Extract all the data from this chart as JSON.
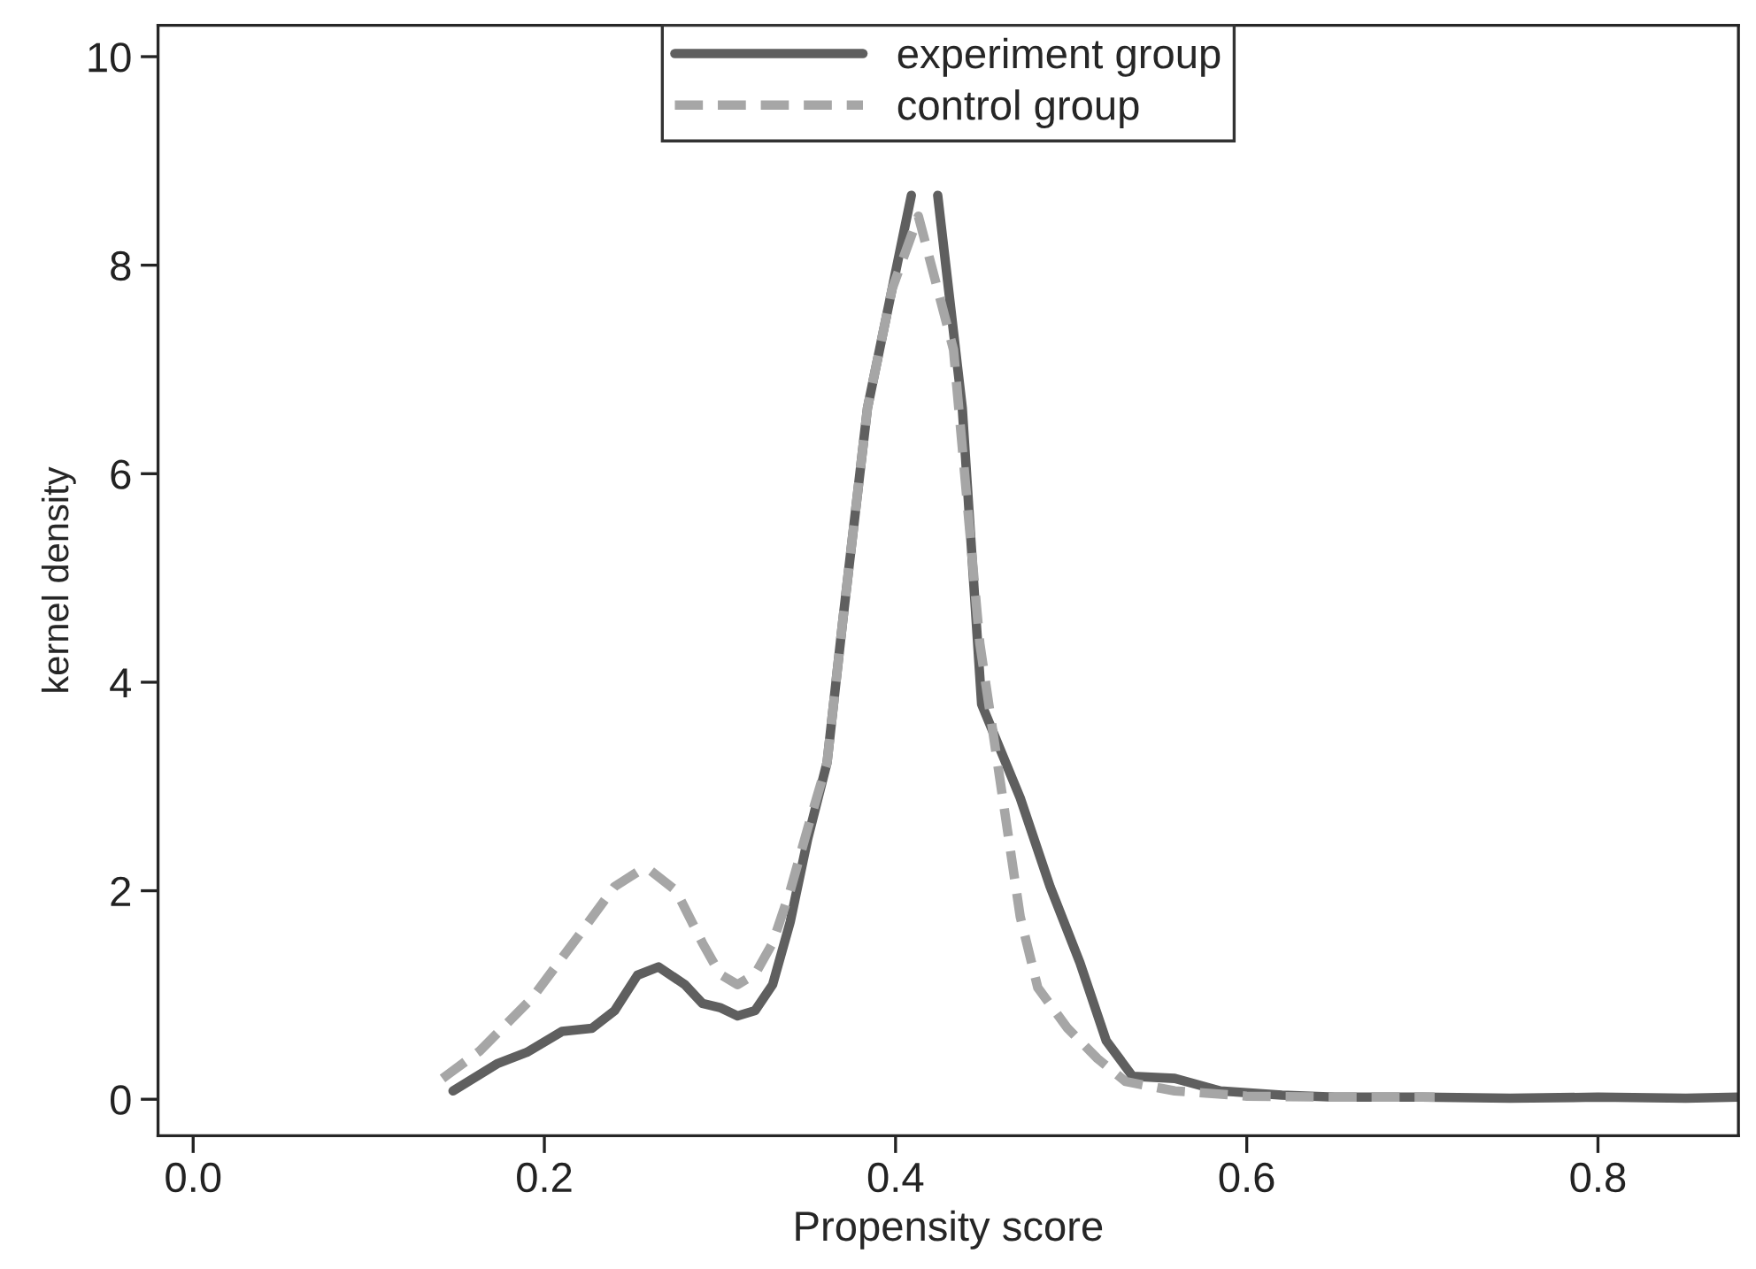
{
  "chart_data": {
    "type": "line",
    "xlabel": "Propensity score",
    "ylabel": "kernel density",
    "xlim": [
      -0.02,
      0.88
    ],
    "xticks": [
      {
        "value": 0,
        "label": "0.0"
      },
      {
        "value": 0.2,
        "label": "0.2"
      },
      {
        "value": 0.4,
        "label": "0.4"
      },
      {
        "value": 0.6,
        "label": "0.6"
      },
      {
        "value": 0.8,
        "label": "0.8"
      }
    ],
    "ylim": [
      -0.35,
      10.3
    ],
    "yticks": [
      0,
      2,
      4,
      6,
      8,
      10
    ],
    "grid": false,
    "legend": "top",
    "marker": "none",
    "series": [
      {
        "name": "experiment group",
        "color": "#5f5f5f",
        "line_style": "solid",
        "x": [
          0.148,
          0.173,
          0.19,
          0.21,
          0.227,
          0.24,
          0.253,
          0.265,
          0.28,
          0.29,
          0.3,
          0.31,
          0.32,
          0.33,
          0.34,
          0.35,
          0.361,
          0.37,
          0.384,
          0.398,
          0.409,
          0.416,
          0.424,
          0.438,
          0.449,
          0.471,
          0.488,
          0.505,
          0.52,
          0.535,
          0.559,
          0.585,
          0.62,
          0.65,
          0.7,
          0.75,
          0.8,
          0.85,
          0.88
        ],
        "values": [
          0.08,
          0.34,
          0.45,
          0.65,
          0.68,
          0.85,
          1.19,
          1.27,
          1.1,
          0.92,
          0.88,
          0.8,
          0.85,
          1.1,
          1.7,
          2.5,
          3.23,
          4.6,
          6.63,
          7.77,
          8.67,
          null,
          8.67,
          6.63,
          3.79,
          2.89,
          2.04,
          1.31,
          0.56,
          0.22,
          0.2,
          0.08,
          0.04,
          0.02,
          0.02,
          0.01,
          0.02,
          0.01,
          0.02
        ]
      },
      {
        "name": "control group",
        "color": "#a6a6a6",
        "line_style": "dashed",
        "x": [
          0.142,
          0.163,
          0.193,
          0.22,
          0.24,
          0.253,
          0.26,
          0.275,
          0.29,
          0.3,
          0.31,
          0.32,
          0.33,
          0.34,
          0.35,
          0.361,
          0.37,
          0.384,
          0.398,
          0.413,
          0.433,
          0.448,
          0.461,
          0.471,
          0.481,
          0.498,
          0.515,
          0.531,
          0.559,
          0.6,
          0.65,
          0.707
        ],
        "values": [
          0.2,
          0.46,
          0.97,
          1.58,
          2.04,
          2.18,
          2.2,
          2.0,
          1.5,
          1.2,
          1.1,
          1.2,
          1.5,
          2.0,
          2.6,
          3.23,
          4.6,
          6.63,
          7.77,
          8.47,
          7.19,
          4.37,
          2.89,
          1.75,
          1.07,
          0.68,
          0.39,
          0.17,
          0.08,
          0.03,
          0.02,
          0.02
        ]
      }
    ]
  }
}
